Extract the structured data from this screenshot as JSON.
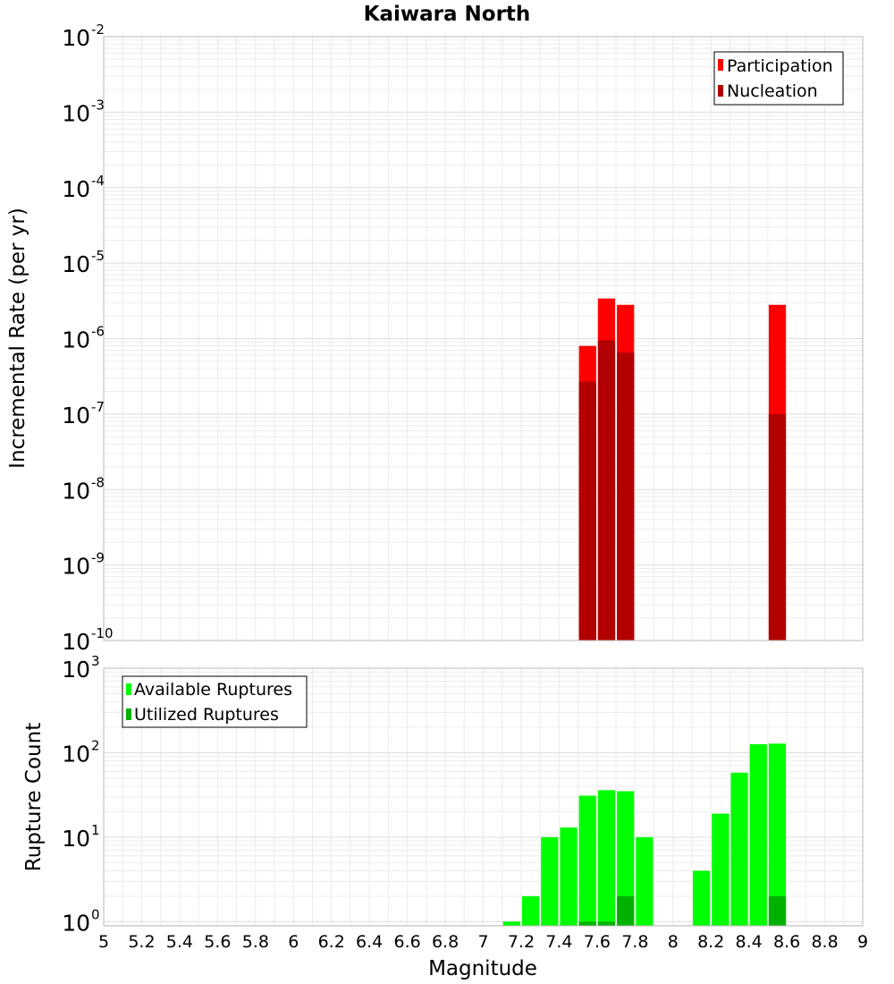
{
  "chart_data": {
    "title": "Kaiwara North",
    "xlabel": "Magnitude",
    "x_ticks": [
      "5",
      "5.2",
      "5.4",
      "5.6",
      "5.8",
      "6",
      "6.2",
      "6.4",
      "6.6",
      "6.8",
      "7",
      "7.2",
      "7.4",
      "7.6",
      "7.8",
      "8",
      "8.2",
      "8.4",
      "8.6",
      "8.8",
      "9"
    ],
    "xlim": [
      5,
      9
    ],
    "bin_width": 0.1,
    "panels": [
      {
        "type": "bar",
        "ylabel": "Incremental Rate (per yr)",
        "yscale": "log",
        "ylim_exp": [
          -10,
          -2
        ],
        "y_ticks": [
          {
            "base": "10",
            "exp": "-2"
          },
          {
            "base": "10",
            "exp": "-3"
          },
          {
            "base": "10",
            "exp": "-4"
          },
          {
            "base": "10",
            "exp": "-5"
          },
          {
            "base": "10",
            "exp": "-6"
          },
          {
            "base": "10",
            "exp": "-7"
          },
          {
            "base": "10",
            "exp": "-8"
          },
          {
            "base": "10",
            "exp": "-9"
          },
          {
            "base": "10",
            "exp": "-10"
          }
        ],
        "legend_position": "top-right",
        "series": [
          {
            "name": "Participation",
            "color": "#ff0000",
            "x": [
              7.55,
              7.65,
              7.75,
              8.55
            ],
            "values": [
              8e-07,
              3.4e-06,
              2.8e-06,
              2.8e-06
            ]
          },
          {
            "name": "Nucleation",
            "color": "#b20000",
            "x": [
              7.55,
              7.65,
              7.75,
              8.55
            ],
            "values": [
              2.7e-07,
              9.5e-07,
              6.5e-07,
              1e-07
            ]
          }
        ]
      },
      {
        "type": "bar",
        "ylabel": "Rupture Count",
        "yscale": "log",
        "ylim_exp": [
          -0.05,
          3
        ],
        "y_ticks": [
          {
            "base": "10",
            "exp": "3"
          },
          {
            "base": "10",
            "exp": "2"
          },
          {
            "base": "10",
            "exp": "1"
          },
          {
            "base": "10",
            "exp": "0"
          }
        ],
        "legend_position": "top-left",
        "series": [
          {
            "name": "Available Ruptures",
            "color": "#00ff00",
            "x": [
              7.15,
              7.25,
              7.35,
              7.45,
              7.55,
              7.65,
              7.75,
              7.85,
              8.15,
              8.25,
              8.35,
              8.45,
              8.55
            ],
            "values": [
              1,
              2,
              10,
              13,
              31,
              36,
              35,
              10,
              4,
              19,
              58,
              126,
              128
            ]
          },
          {
            "name": "Utilized Ruptures",
            "color": "#00b200",
            "x": [
              7.55,
              7.65,
              7.75,
              8.55
            ],
            "values": [
              1,
              1,
              2,
              2
            ]
          }
        ]
      }
    ]
  }
}
